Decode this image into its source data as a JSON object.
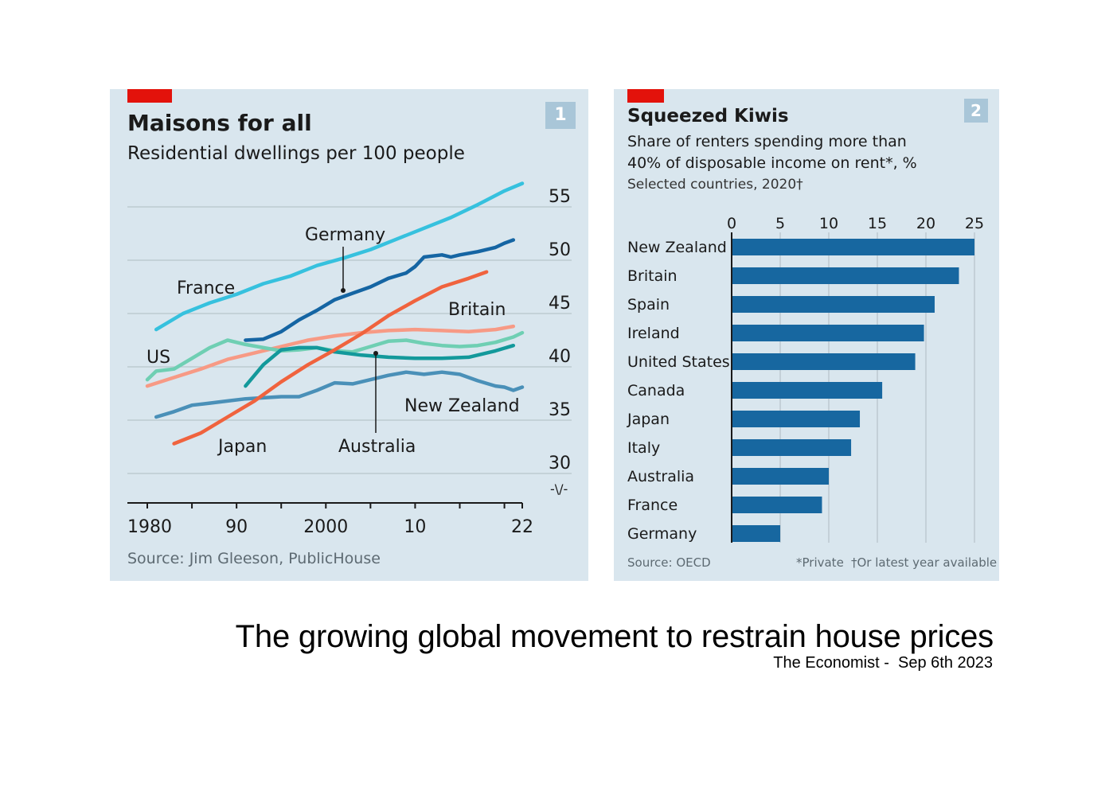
{
  "chart_data": [
    {
      "type": "line",
      "badge": "1",
      "title": "Maisons for all",
      "subtitle": "Residential dwellings per 100 people",
      "source": "Source: Jim Gleeson, PublicHouse",
      "xlim": [
        1979,
        2023
      ],
      "ylim": [
        25,
        56
      ],
      "x_ticks": [
        1980,
        1985,
        1990,
        1995,
        2000,
        2005,
        2010,
        2015,
        2020,
        2022
      ],
      "x_tick_labels": [
        {
          "x": 1980,
          "label": "1980"
        },
        {
          "x": 1990,
          "label": "90"
        },
        {
          "x": 2000,
          "label": "2000"
        },
        {
          "x": 2010,
          "label": "10"
        },
        {
          "x": 2022,
          "label": "22"
        }
      ],
      "y_ticks": [
        30,
        35,
        40,
        45,
        50,
        55
      ],
      "y_tick_labels": [
        "30",
        "35",
        "40",
        "45",
        "50",
        "55"
      ],
      "axis_break_symbol": "-\\/-",
      "series": [
        {
          "name": "France",
          "label": "France",
          "color": "#36c1de",
          "x": [
            1981,
            1984,
            1987,
            1990,
            1993,
            1996,
            1999,
            2002,
            2005,
            2008,
            2011,
            2014,
            2017,
            2020,
            2022
          ],
          "y": [
            43.5,
            45,
            46,
            46.8,
            47.8,
            48.5,
            49.5,
            50.2,
            51,
            52,
            53,
            54,
            55.2,
            56.5,
            57.2
          ]
        },
        {
          "name": "Germany",
          "label": "Germany",
          "color": "#1565a3",
          "x": [
            1991,
            1993,
            1995,
            1997,
            1999,
            2001,
            2003,
            2005,
            2007,
            2009,
            2010,
            2011,
            2013,
            2014,
            2015,
            2017,
            2019,
            2020,
            2021
          ],
          "y": [
            42.5,
            42.6,
            43.3,
            44.4,
            45.3,
            46.3,
            46.9,
            47.5,
            48.3,
            48.8,
            49.4,
            50.3,
            50.5,
            50.3,
            50.5,
            50.8,
            51.2,
            51.6,
            51.9
          ]
        },
        {
          "name": "Britain",
          "label": "Britain",
          "color": "#f79a85",
          "x": [
            1980,
            1983,
            1986,
            1989,
            1992,
            1995,
            1998,
            2001,
            2004,
            2007,
            2010,
            2013,
            2016,
            2019,
            2021
          ],
          "y": [
            38.2,
            39,
            39.8,
            40.7,
            41.3,
            41.9,
            42.5,
            42.9,
            43.2,
            43.4,
            43.5,
            43.4,
            43.3,
            43.5,
            43.8
          ]
        },
        {
          "name": "US",
          "label": "US",
          "color": "#6fcfb3",
          "x": [
            1980,
            1981,
            1983,
            1985,
            1987,
            1989,
            1991,
            1993,
            1995,
            1997,
            1999,
            2001,
            2003,
            2005,
            2007,
            2009,
            2011,
            2013,
            2015,
            2017,
            2019,
            2021,
            2022
          ],
          "y": [
            38.8,
            39.6,
            39.8,
            40.8,
            41.8,
            42.5,
            42.1,
            41.8,
            41.5,
            41.6,
            41.8,
            41.5,
            41.4,
            41.9,
            42.4,
            42.5,
            42.2,
            42,
            41.9,
            42,
            42.3,
            42.8,
            43.2
          ]
        },
        {
          "name": "New Zealand",
          "label": "New Zealand",
          "color": "#13999b",
          "x": [
            1991,
            1993,
            1995,
            1997,
            1999,
            2001,
            2004,
            2007,
            2010,
            2013,
            2016,
            2019,
            2021
          ],
          "y": [
            38.2,
            40.2,
            41.6,
            41.8,
            41.8,
            41.4,
            41.1,
            40.9,
            40.8,
            40.8,
            40.9,
            41.5,
            42
          ]
        },
        {
          "name": "Australia",
          "label": "Australia",
          "color": "#4a90b8",
          "x": [
            1981,
            1983,
            1985,
            1987,
            1989,
            1991,
            1993,
            1995,
            1997,
            1999,
            2001,
            2003,
            2005,
            2007,
            2009,
            2011,
            2013,
            2015,
            2017,
            2019,
            2020,
            2021,
            2022
          ],
          "y": [
            35.3,
            35.8,
            36.4,
            36.6,
            36.8,
            37,
            37.1,
            37.2,
            37.2,
            37.8,
            38.5,
            38.4,
            38.8,
            39.2,
            39.5,
            39.3,
            39.5,
            39.3,
            38.7,
            38.2,
            38.1,
            37.8,
            38.1
          ]
        },
        {
          "name": "Japan",
          "label": "Japan",
          "color": "#f0633e",
          "x": [
            1983,
            1986,
            1989,
            1992,
            1995,
            1998,
            2001,
            2004,
            2007,
            2010,
            2013,
            2016,
            2018
          ],
          "y": [
            32.8,
            33.8,
            35.3,
            36.8,
            38.6,
            40.2,
            41.6,
            43.1,
            44.8,
            46.2,
            47.5,
            48.3,
            48.9
          ]
        }
      ],
      "legend": "direct labels"
    },
    {
      "type": "bar",
      "orientation": "horizontal",
      "badge": "2",
      "title": "Squeezed Kiwis",
      "subtitle_line1": "Share of renters spending more than",
      "subtitle_line2": "40% of disposable income on rent*, %",
      "subtitle_line3": "Selected countries, 2020†",
      "categories": [
        "New Zealand",
        "Britain",
        "Spain",
        "Ireland",
        "United States",
        "Canada",
        "Japan",
        "Italy",
        "Australia",
        "France",
        "Germany"
      ],
      "values": [
        25,
        23.4,
        20.9,
        19.8,
        18.9,
        15.5,
        13.2,
        12.3,
        10,
        9.3,
        5
      ],
      "xlim": [
        0,
        25
      ],
      "x_ticks": [
        0,
        5,
        10,
        15,
        20,
        25
      ],
      "x_tick_labels": [
        "0",
        "5",
        "10",
        "15",
        "20",
        "25"
      ],
      "bar_color": "#1767a0",
      "source": "Source: OECD",
      "footnote1": "*Private",
      "footnote2": "†Or latest year available"
    }
  ],
  "caption": {
    "headline": "The growing global movement to restrain house prices",
    "byline": "The Economist -  Sep 6th 2023"
  }
}
